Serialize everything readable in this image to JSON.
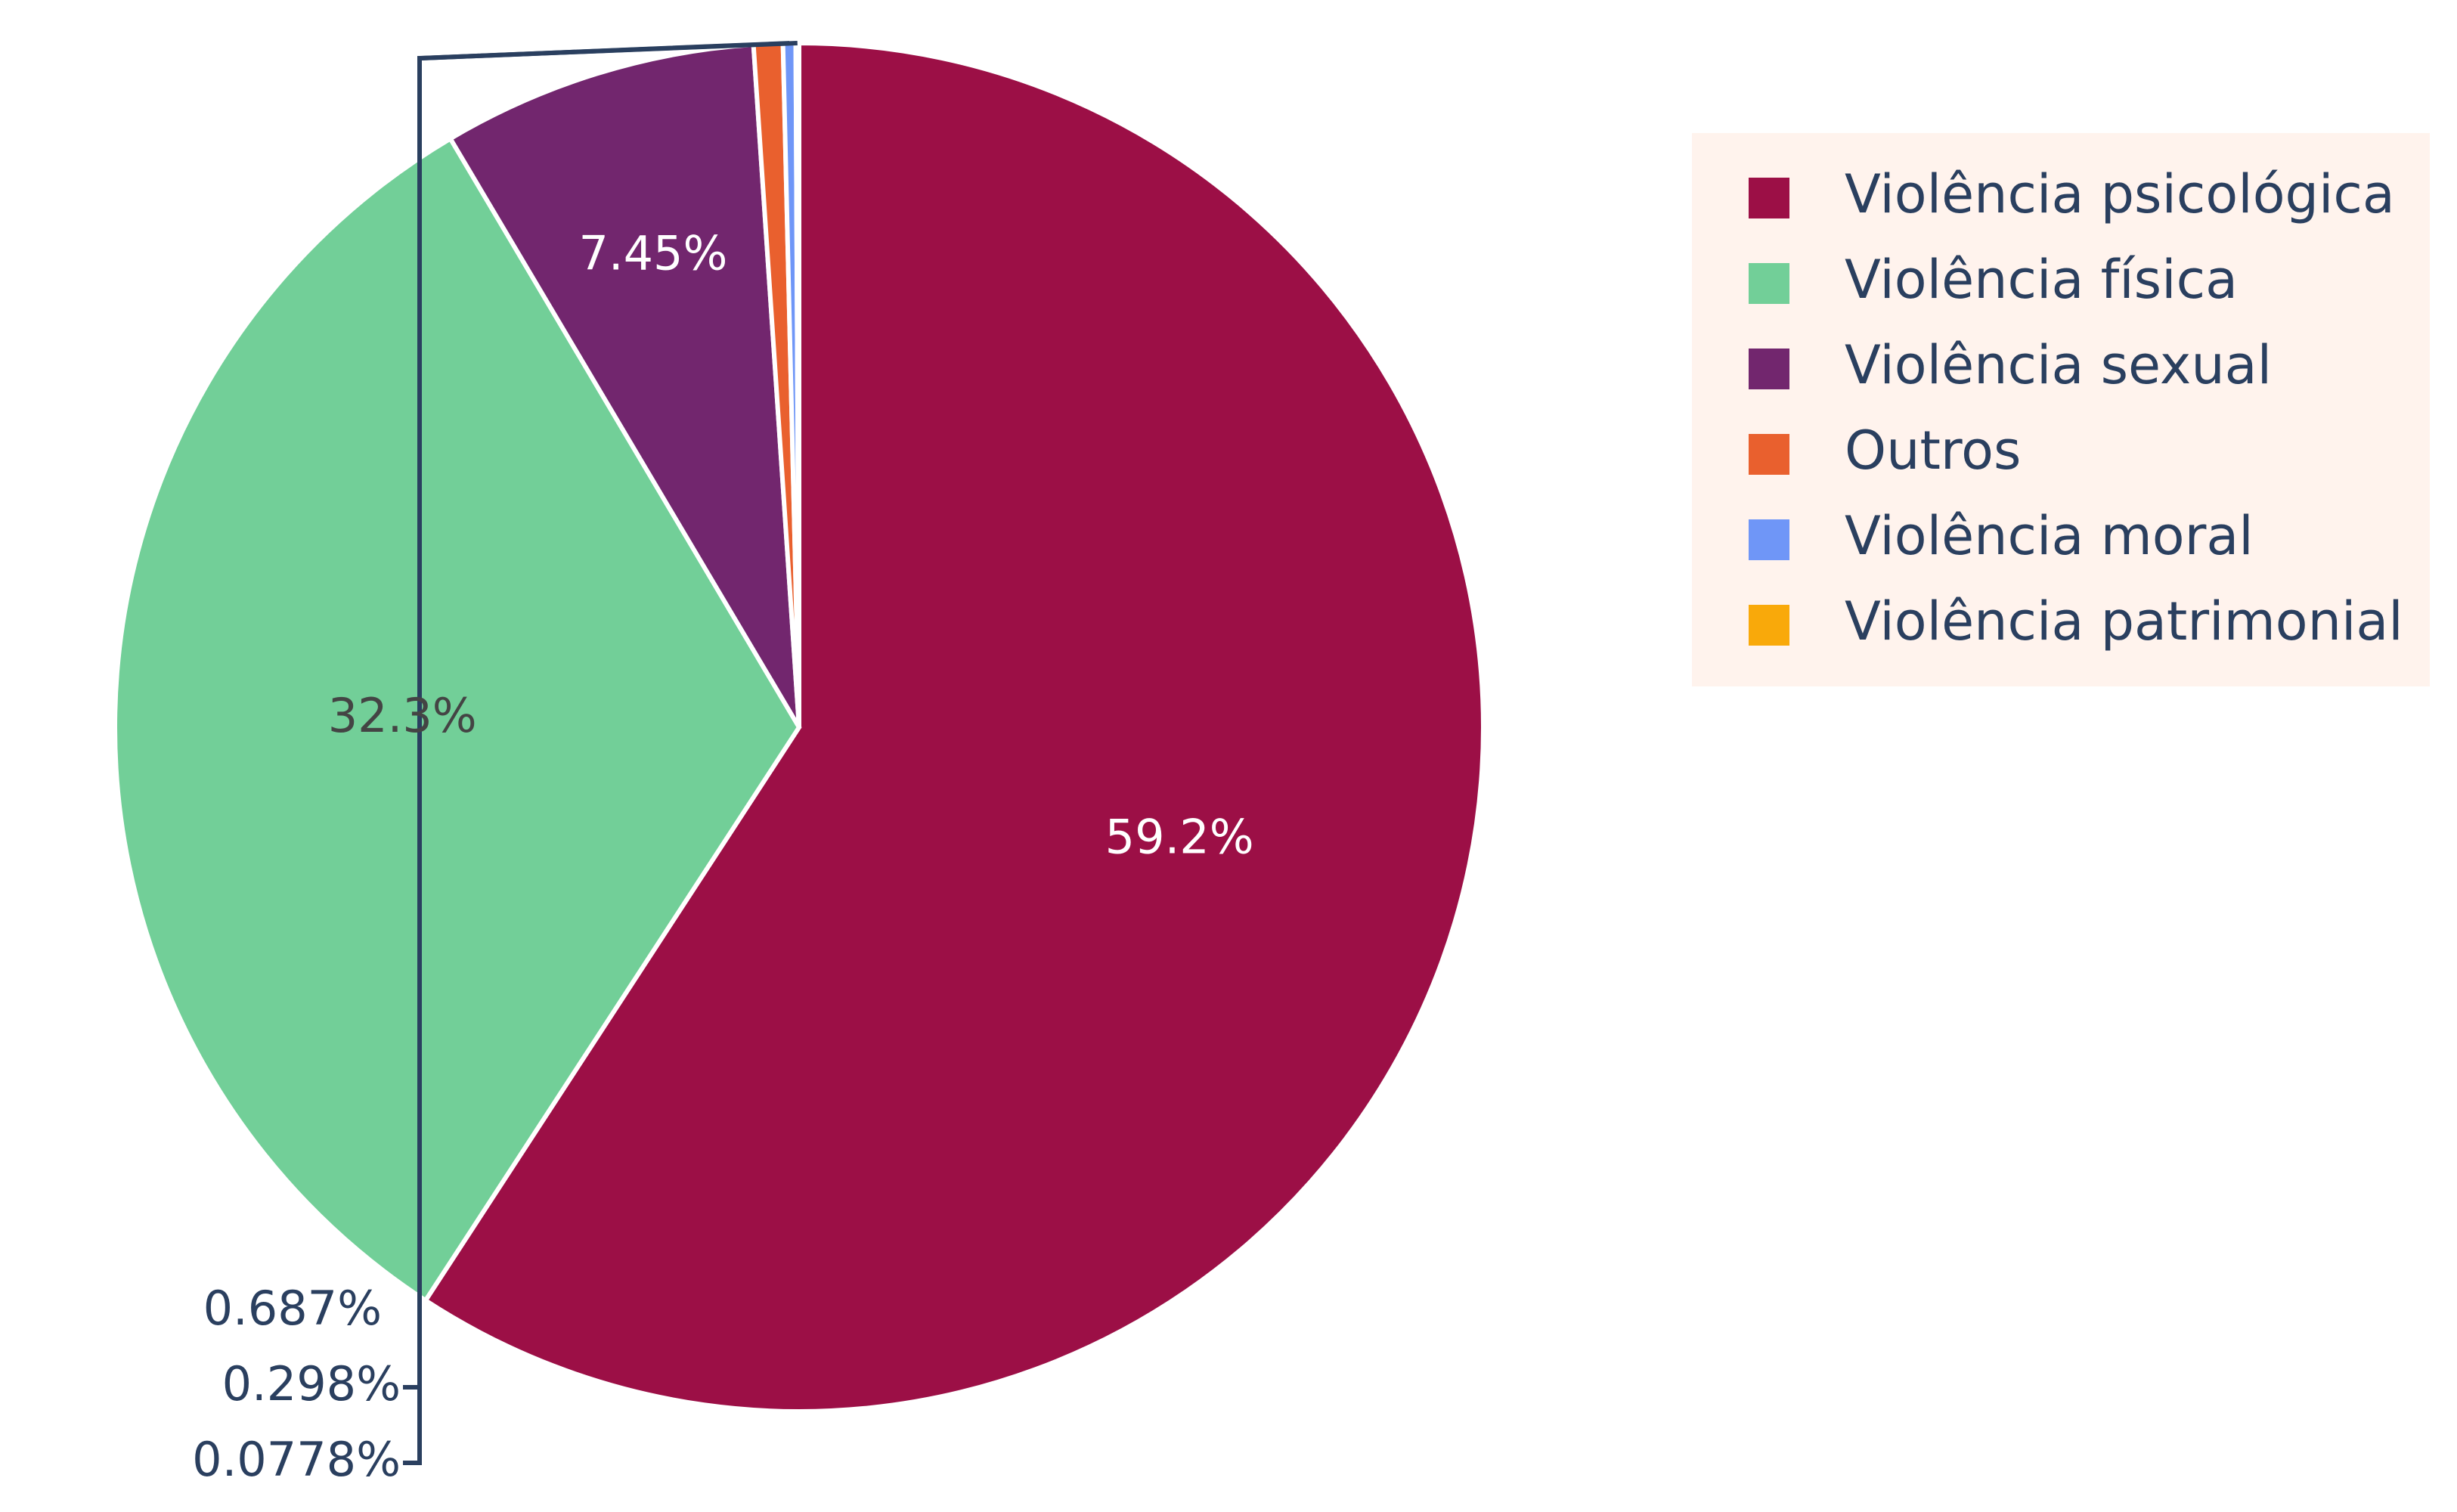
{
  "chart_data": {
    "type": "pie",
    "direction": "clockwise",
    "legend_position": "top-right",
    "labels": [
      "Violência psicológica",
      "Violência física",
      "Violência sexual",
      "Outros",
      "Violência moral",
      "Violência patrimonial"
    ],
    "values": [
      59.2,
      32.3,
      7.45,
      0.687,
      0.298,
      0.0778
    ],
    "text_labels": [
      "59.2%",
      "32.3%",
      "7.45%",
      "0.687%",
      "0.298%",
      "0.0778%"
    ],
    "colors": [
      "#9c0f46",
      "#72cf98",
      "#72266e",
      "#e9602e",
      "#6f96f7",
      "#f9a90a"
    ],
    "legend_background": "#fff3ed",
    "label_text_colors": [
      "#ffffff",
      "#444444",
      "#ffffff",
      "#2a3f5f",
      "#2a3f5f",
      "#2a3f5f"
    ]
  }
}
